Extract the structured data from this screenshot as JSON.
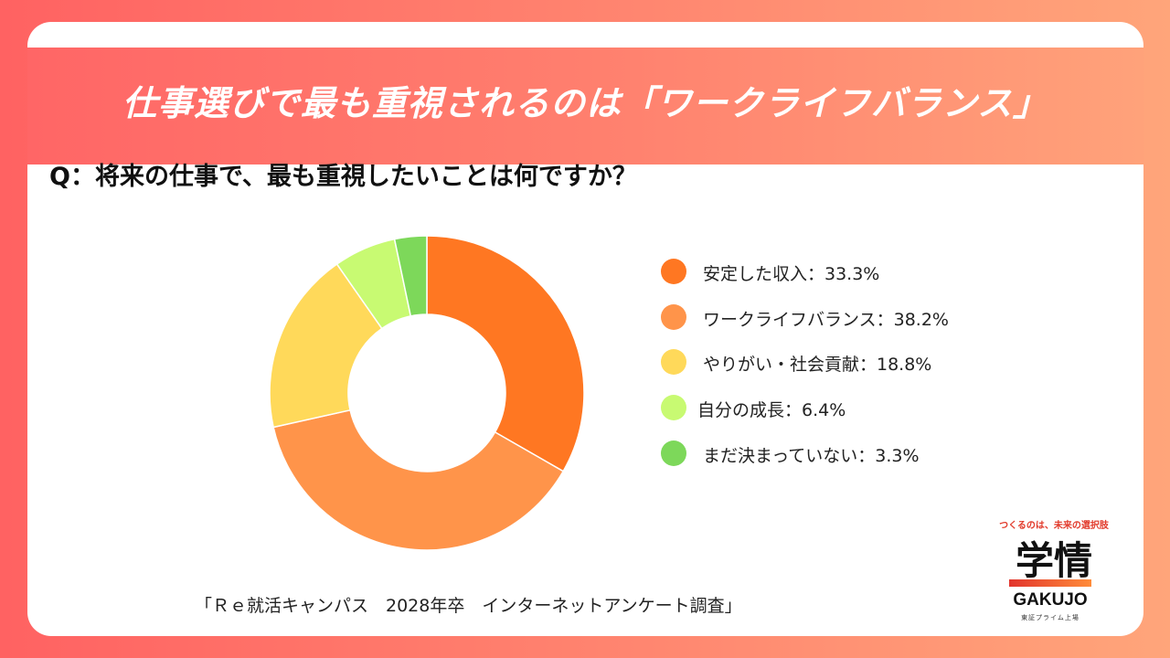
{
  "header": {
    "title": "仕事選びで最も重視されるのは「ワークライフバランス」"
  },
  "question": "Q：将来の仕事で、最も重視したいことは何ですか？",
  "source": "「Ｒｅ就活キャンパス　2028年卒　インターネットアンケート調査」",
  "logo": {
    "tagline": "つくるのは、未来の選択肢",
    "main": "学情",
    "en": "GAKUJO",
    "sub": "東証プライム上場"
  },
  "chart_data": {
    "type": "pie",
    "donut": true,
    "categories": [
      "安定した収入",
      "ワークライフバランス",
      "やりがい・社会貢献",
      "自分の成長",
      "まだ決まっていない"
    ],
    "values": [
      33.3,
      38.2,
      18.8,
      6.4,
      3.3
    ],
    "colors": [
      "#ff7722",
      "#ff944a",
      "#ffd95a",
      "#c8fa72",
      "#7dd85a"
    ],
    "legend_labels": [
      "安定した収入：33.3%",
      "ワークライフバランス：38.2%",
      "やりがい・社会貢献：18.8%",
      "自分の成長：6.4%",
      "まだ決まっていない：3.3%"
    ],
    "legend_position": "right"
  }
}
